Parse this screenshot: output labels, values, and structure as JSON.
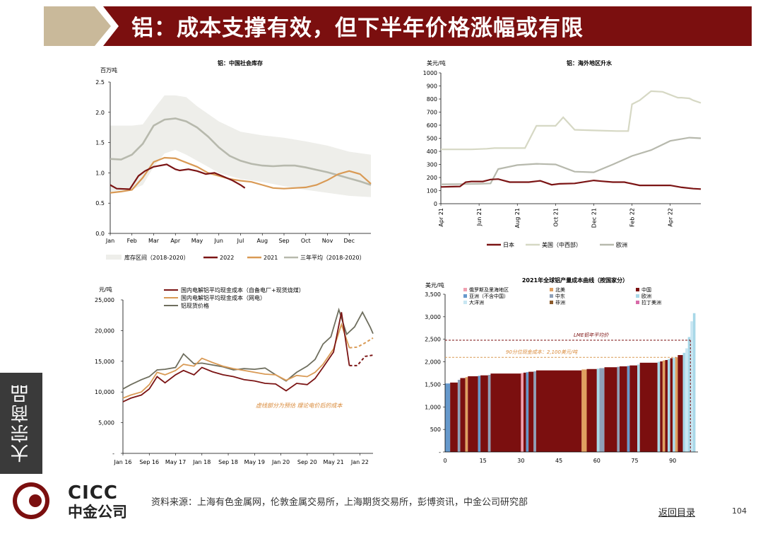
{
  "header": {
    "title": "铝：成本支撑有效，但下半年价格涨幅或有限"
  },
  "side_tab": {
    "label": "大宗商品"
  },
  "footer": {
    "source": "资料来源：上海有色金属网，伦敦金属交易所，上海期货交易所，彭博资讯，中金公司研究部",
    "back_link": "返回目录",
    "page_number": "104"
  },
  "logo": {
    "en": "CICC",
    "cn": "中金公司"
  },
  "colors": {
    "banner": "#7b0f0f",
    "gold": "#c9b99a",
    "maroon": "#7b1414",
    "orange": "#d99a55",
    "grey": "#b7b9ad"
  },
  "chart_data": [
    {
      "type": "line",
      "title": "铝：中国社会库存",
      "ylabel": "百万吨",
      "ylim": [
        0,
        2.5
      ],
      "yticks": [
        "2.5",
        "2.0",
        "1.5",
        "1.0",
        "0.5",
        "0.0"
      ],
      "xticks": [
        "Jan",
        "Feb",
        "Mar",
        "Apr",
        "May",
        "Jun",
        "Jul",
        "Aug",
        "Sep",
        "Oct",
        "Nov",
        "Dec"
      ],
      "band": {
        "name": "库存区间（2018-2020）",
        "x": [
          0,
          1,
          1.5,
          2,
          2.5,
          3,
          3.5,
          4,
          5,
          6,
          7,
          8,
          9,
          10,
          11,
          12
        ],
        "lower": [
          0.69,
          0.72,
          0.8,
          1.1,
          1.32,
          1.38,
          1.3,
          1.2,
          1.0,
          0.9,
          0.85,
          0.78,
          0.72,
          0.67,
          0.62,
          0.6
        ],
        "upper": [
          1.78,
          1.78,
          1.8,
          2.05,
          2.28,
          2.28,
          2.25,
          2.1,
          1.85,
          1.68,
          1.62,
          1.58,
          1.52,
          1.45,
          1.35,
          1.3
        ]
      },
      "series": [
        {
          "name": "2022",
          "x": [
            0,
            0.3,
            0.9,
            1.3,
            1.6,
            2.0,
            2.6,
            3.0,
            3.2,
            3.6,
            4.0,
            4.4,
            4.8,
            5.2,
            5.6,
            6.0,
            6.2
          ],
          "values": [
            0.8,
            0.74,
            0.73,
            0.95,
            1.03,
            1.1,
            1.14,
            1.06,
            1.04,
            1.06,
            1.03,
            0.98,
            1.0,
            0.94,
            0.88,
            0.8,
            0.75
          ]
        },
        {
          "name": "2021",
          "x": [
            0,
            0.5,
            1.0,
            1.5,
            2.0,
            2.5,
            3.0,
            3.5,
            4.0,
            4.5,
            5.0,
            5.5,
            6.0,
            6.5,
            7.0,
            7.5,
            8.0,
            8.5,
            9.0,
            9.5,
            10.0,
            10.5,
            11.0,
            11.5,
            12.0
          ],
          "values": [
            0.67,
            0.69,
            0.72,
            0.92,
            1.18,
            1.25,
            1.24,
            1.17,
            1.1,
            1.0,
            0.95,
            0.9,
            0.87,
            0.85,
            0.8,
            0.75,
            0.74,
            0.75,
            0.76,
            0.8,
            0.88,
            0.98,
            1.03,
            0.98,
            0.82
          ]
        },
        {
          "name": "三年平均（2018-2020）",
          "x": [
            0,
            0.5,
            1.0,
            1.5,
            2.0,
            2.5,
            3.0,
            3.5,
            4.0,
            4.5,
            5.0,
            5.5,
            6.0,
            6.5,
            7.0,
            7.5,
            8.0,
            8.5,
            9.0,
            9.5,
            10.0,
            10.5,
            11.0,
            11.5,
            12.0
          ],
          "values": [
            1.23,
            1.22,
            1.3,
            1.48,
            1.78,
            1.88,
            1.9,
            1.85,
            1.75,
            1.6,
            1.42,
            1.28,
            1.2,
            1.15,
            1.12,
            1.11,
            1.12,
            1.12,
            1.09,
            1.05,
            1.01,
            0.96,
            0.91,
            0.86,
            0.8
          ]
        }
      ]
    },
    {
      "type": "line",
      "title": "铝：海外地区升水",
      "ylabel": "美元/吨",
      "ylim": [
        0,
        1000
      ],
      "yticks": [
        "1000",
        "900",
        "800",
        "700",
        "600",
        "500",
        "400",
        "300",
        "200",
        "100",
        "0"
      ],
      "xticks": [
        "Apr 21",
        "Jun 21",
        "Aug 21",
        "Oct 21",
        "Dec 21",
        "Feb 22",
        "Apr 22"
      ],
      "series": [
        {
          "name": "日本",
          "x": [
            0,
            0.3,
            0.5,
            0.65,
            0.8,
            1.1,
            1.3,
            1.5,
            1.8,
            2.3,
            2.6,
            2.9,
            3.1,
            3.5,
            4.0,
            4.2,
            4.5,
            4.8,
            5.2,
            5.6,
            6.0,
            6.3,
            6.6,
            6.8
          ],
          "values": [
            128,
            130,
            132,
            165,
            170,
            170,
            185,
            188,
            165,
            165,
            175,
            145,
            152,
            155,
            178,
            172,
            165,
            165,
            140,
            140,
            140,
            125,
            115,
            112
          ]
        },
        {
          "name": "美国（中西部）",
          "x": [
            0,
            0.5,
            0.8,
            1.2,
            1.4,
            1.8,
            2.2,
            2.5,
            2.8,
            3.0,
            3.2,
            3.5,
            4.0,
            4.6,
            4.9,
            5.0,
            5.2,
            5.5,
            5.8,
            6.2,
            6.3,
            6.5,
            6.6,
            6.8
          ],
          "values": [
            415,
            415,
            415,
            420,
            425,
            425,
            425,
            595,
            595,
            595,
            660,
            565,
            560,
            555,
            555,
            760,
            790,
            860,
            855,
            810,
            810,
            805,
            790,
            770
          ]
        },
        {
          "name": "欧洲",
          "x": [
            0,
            0.5,
            1.0,
            1.3,
            1.5,
            2.0,
            2.5,
            3.0,
            3.5,
            4.0,
            4.5,
            5.0,
            5.5,
            6.0,
            6.5,
            6.8
          ],
          "values": [
            148,
            150,
            152,
            155,
            265,
            295,
            305,
            300,
            245,
            240,
            300,
            365,
            410,
            480,
            505,
            500
          ]
        }
      ]
    },
    {
      "type": "line",
      "ylabel": "元/吨",
      "ylim": [
        0,
        25000
      ],
      "yticks": [
        "25,000",
        "20,000",
        "15,000",
        "10,000",
        "5,000",
        "-"
      ],
      "xticks": [
        "Jan 16",
        "Sep 16",
        "May 17",
        "Jan 18",
        "Sep 18",
        "May 19",
        "Jan 20",
        "Sep 20",
        "May 21",
        "Jan 22"
      ],
      "annotation": "虚线部分为预估 理论电价后的成本",
      "series": [
        {
          "name": "国内电解铝平均现金成本（自备电厂+现货烧煤）",
          "x": [
            0,
            0.3,
            0.7,
            1.0,
            1.3,
            1.6,
            2.0,
            2.3,
            2.7,
            3.0,
            3.4,
            3.8,
            4.2,
            4.6,
            5.0,
            5.4,
            5.8,
            6.2,
            6.6,
            7.0,
            7.3,
            7.6,
            8.0,
            8.3,
            8.6,
            8.9,
            9.2,
            9.5
          ],
          "values": [
            8400,
            9000,
            9500,
            10500,
            12500,
            11500,
            12800,
            13500,
            12800,
            14000,
            13300,
            12800,
            12500,
            12000,
            11800,
            11400,
            11300,
            10200,
            11400,
            11200,
            12200,
            14000,
            16500,
            23000,
            14300,
            14300,
            15800,
            16000
          ]
        },
        {
          "name": "国内电解铝平均现金成本（网电）",
          "x": [
            0,
            0.3,
            0.7,
            1.0,
            1.3,
            1.6,
            2.0,
            2.3,
            2.7,
            3.0,
            3.4,
            3.8,
            4.2,
            4.6,
            5.0,
            5.4,
            5.8,
            6.2,
            6.6,
            7.0,
            7.3,
            7.6,
            8.0,
            8.3,
            8.6,
            8.9,
            9.2,
            9.5
          ],
          "values": [
            9000,
            9500,
            10000,
            11200,
            13200,
            12800,
            13500,
            14500,
            14200,
            15500,
            14800,
            14200,
            13800,
            13500,
            13200,
            12900,
            12800,
            11900,
            12700,
            12500,
            13200,
            14500,
            17000,
            21000,
            17200,
            17300,
            18000,
            18800
          ]
        },
        {
          "name": "铝现货价格",
          "x": [
            0,
            0.3,
            0.7,
            1.0,
            1.3,
            1.6,
            2.0,
            2.3,
            2.7,
            3.0,
            3.4,
            3.8,
            4.2,
            4.6,
            5.0,
            5.4,
            5.8,
            6.2,
            6.6,
            7.0,
            7.3,
            7.6,
            7.9,
            8.2,
            8.5,
            8.8,
            9.1,
            9.4,
            9.5
          ],
          "values": [
            10500,
            11200,
            12000,
            12500,
            13600,
            13700,
            14000,
            16200,
            14600,
            14700,
            14400,
            14100,
            13600,
            13800,
            13700,
            13900,
            12800,
            11800,
            13200,
            14200,
            15300,
            17800,
            19000,
            23400,
            19400,
            20600,
            23000,
            20500,
            19500
          ]
        }
      ]
    },
    {
      "type": "bar",
      "title": "2021年全球铝产量成本曲线（按国家分）",
      "ylabel": "美元/吨",
      "ylim": [
        0,
        3500
      ],
      "yticks": [
        "3,500",
        "3,000",
        "2,500",
        "2,000",
        "1,500",
        "1,000",
        "500",
        "-"
      ],
      "xticks": [
        "0",
        "15",
        "30",
        "45",
        "60",
        "75",
        "90"
      ],
      "xlim": [
        0,
        100
      ],
      "legend": [
        "俄罗斯及里海地区",
        "北美",
        "中国",
        "亚洲（不含中国）",
        "中东",
        "欧洲",
        "大洋洲",
        "非洲",
        "拉丁美洲"
      ],
      "legend_colors": [
        "#f0a0b0",
        "#e0a060",
        "#7b0f0f",
        "#6699cc",
        "#8fa0b8",
        "#a8d8e8",
        "#c8e6f2",
        "#8b5a2b",
        "#d86aa8"
      ],
      "reference_lines": [
        {
          "label": "LME铝年平均价",
          "value": 2480
        },
        {
          "label": "90分位现金成本：2,100美元/吨",
          "value": 2100
        }
      ],
      "bars": [
        {
          "x0": 0,
          "x1": 2,
          "value": 1520,
          "region": "亚洲（不含中国）"
        },
        {
          "x0": 2,
          "x1": 5,
          "value": 1540,
          "region": "中国"
        },
        {
          "x0": 5,
          "x1": 6,
          "value": 1600,
          "region": "中东"
        },
        {
          "x0": 6,
          "x1": 8,
          "value": 1640,
          "region": "中国"
        },
        {
          "x0": 8,
          "x1": 9,
          "value": 1660,
          "region": "北美"
        },
        {
          "x0": 9,
          "x1": 13,
          "value": 1680,
          "region": "中国"
        },
        {
          "x0": 13,
          "x1": 14,
          "value": 1690,
          "region": "亚洲（不含中国）"
        },
        {
          "x0": 14,
          "x1": 17,
          "value": 1700,
          "region": "中国"
        },
        {
          "x0": 17,
          "x1": 18,
          "value": 1710,
          "region": "中东"
        },
        {
          "x0": 18,
          "x1": 30,
          "value": 1740,
          "region": "中国"
        },
        {
          "x0": 30,
          "x1": 31,
          "value": 1750,
          "region": "俄罗斯及里海地区"
        },
        {
          "x0": 31,
          "x1": 32,
          "value": 1760,
          "region": "中国"
        },
        {
          "x0": 32,
          "x1": 33,
          "value": 1770,
          "region": "亚洲（不含中国）"
        },
        {
          "x0": 33,
          "x1": 35,
          "value": 1780,
          "region": "中国"
        },
        {
          "x0": 35,
          "x1": 36,
          "value": 1790,
          "region": "中东"
        },
        {
          "x0": 36,
          "x1": 54,
          "value": 1810,
          "region": "中国"
        },
        {
          "x0": 54,
          "x1": 56,
          "value": 1830,
          "region": "北美"
        },
        {
          "x0": 56,
          "x1": 60,
          "value": 1840,
          "region": "中国"
        },
        {
          "x0": 60,
          "x1": 61,
          "value": 1850,
          "region": "欧洲"
        },
        {
          "x0": 61,
          "x1": 63,
          "value": 1860,
          "region": "中东"
        },
        {
          "x0": 63,
          "x1": 68,
          "value": 1880,
          "region": "中国"
        },
        {
          "x0": 68,
          "x1": 69,
          "value": 1890,
          "region": "中东"
        },
        {
          "x0": 69,
          "x1": 72,
          "value": 1900,
          "region": "中国"
        },
        {
          "x0": 72,
          "x1": 73,
          "value": 1910,
          "region": "亚洲（不含中国）"
        },
        {
          "x0": 73,
          "x1": 76,
          "value": 1920,
          "region": "中国"
        },
        {
          "x0": 76,
          "x1": 77,
          "value": 1940,
          "region": "欧洲"
        },
        {
          "x0": 77,
          "x1": 84,
          "value": 1980,
          "region": "中国"
        },
        {
          "x0": 84,
          "x1": 85,
          "value": 2000,
          "region": "欧洲"
        },
        {
          "x0": 85,
          "x1": 86,
          "value": 2010,
          "region": "中国"
        },
        {
          "x0": 86,
          "x1": 87,
          "value": 2030,
          "region": "北美"
        },
        {
          "x0": 87,
          "x1": 88,
          "value": 2040,
          "region": "中国"
        },
        {
          "x0": 88,
          "x1": 89,
          "value": 2060,
          "region": "欧洲"
        },
        {
          "x0": 89,
          "x1": 90,
          "value": 2080,
          "region": "中国"
        },
        {
          "x0": 90,
          "x1": 91,
          "value": 2090,
          "region": "欧洲"
        },
        {
          "x0": 91,
          "x1": 92,
          "value": 2100,
          "region": "北美"
        },
        {
          "x0": 92,
          "x1": 94,
          "value": 2150,
          "region": "中国"
        },
        {
          "x0": 94,
          "x1": 95,
          "value": 2200,
          "region": "欧洲"
        },
        {
          "x0": 95,
          "x1": 96,
          "value": 2300,
          "region": "大洋洲"
        },
        {
          "x0": 96,
          "x1": 97,
          "value": 2550,
          "region": "欧洲"
        },
        {
          "x0": 97,
          "x1": 98,
          "value": 2900,
          "region": "大洋洲"
        },
        {
          "x0": 98,
          "x1": 99,
          "value": 3080,
          "region": "欧洲"
        }
      ]
    }
  ]
}
